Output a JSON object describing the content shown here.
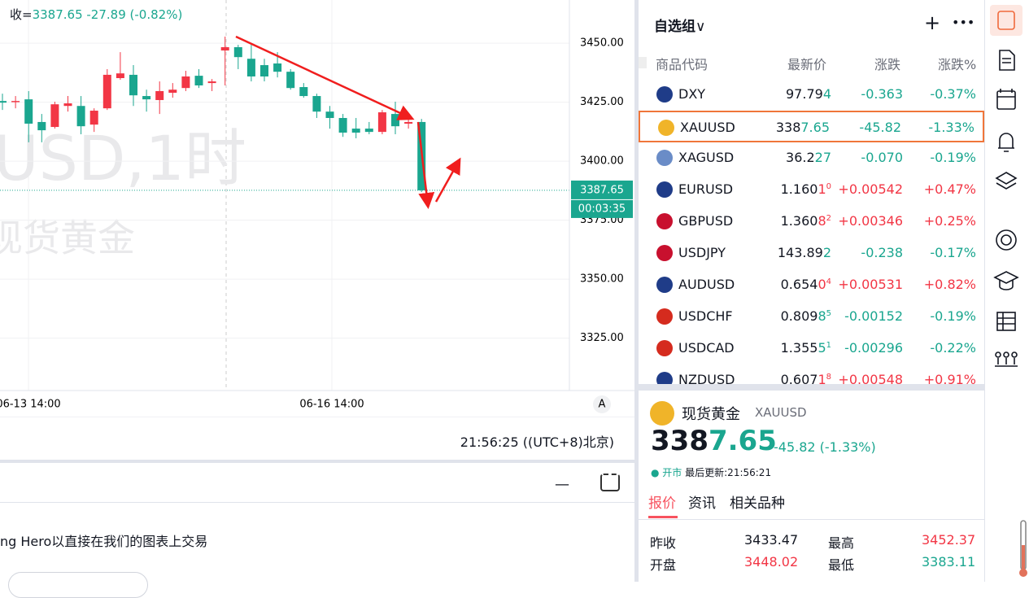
{
  "chart": {
    "type": "candlestick",
    "legend": {
      "label": "收=",
      "close": 3387.65,
      "change": -27.89,
      "change_pct": "(-0.82%)"
    },
    "watermark": {
      "symbol": "USD,1时",
      "name": "现货黄金"
    },
    "ylim": [
      3302.8,
      3468.3
    ],
    "yticks": [
      {
        "value": 3450,
        "label": "3450.00"
      },
      {
        "value": 3425,
        "label": "3425.00"
      },
      {
        "value": 3400,
        "label": "3400.00"
      },
      {
        "value": 3375,
        "label": "3375.00"
      },
      {
        "value": 3350,
        "label": "3350.00"
      },
      {
        "value": 3325,
        "label": "3325.00"
      }
    ],
    "grid": true,
    "up_color": "#f23645",
    "down_color": "#1aa68f",
    "candles": [
      {
        "open": 3425.5,
        "high": 3428.6,
        "low": 3421.7,
        "close": 3424.8
      },
      {
        "open": 3425.0,
        "high": 3427.6,
        "low": 3422.4,
        "close": 3425.5
      },
      {
        "open": 3426.2,
        "high": 3429.7,
        "low": 3408.0,
        "close": 3415.9
      },
      {
        "open": 3416.6,
        "high": 3420.0,
        "low": 3408.0,
        "close": 3413.1
      },
      {
        "open": 3414.5,
        "high": 3425.2,
        "low": 3413.8,
        "close": 3424.1
      },
      {
        "open": 3423.4,
        "high": 3427.6,
        "low": 3421.0,
        "close": 3424.5
      },
      {
        "open": 3423.4,
        "high": 3427.6,
        "low": 3411.4,
        "close": 3414.8
      },
      {
        "open": 3415.5,
        "high": 3422.4,
        "low": 3412.4,
        "close": 3421.4
      },
      {
        "open": 3422.4,
        "high": 3439.0,
        "low": 3421.7,
        "close": 3436.6
      },
      {
        "open": 3435.2,
        "high": 3446.2,
        "low": 3434.5,
        "close": 3437.2
      },
      {
        "open": 3436.6,
        "high": 3440.7,
        "low": 3423.4,
        "close": 3427.9
      },
      {
        "open": 3427.6,
        "high": 3430.3,
        "low": 3421.0,
        "close": 3426.2
      },
      {
        "open": 3425.9,
        "high": 3433.8,
        "low": 3420.0,
        "close": 3429.7
      },
      {
        "open": 3429.0,
        "high": 3433.1,
        "low": 3426.9,
        "close": 3430.3
      },
      {
        "open": 3431.0,
        "high": 3438.3,
        "low": 3429.7,
        "close": 3435.9
      },
      {
        "open": 3436.2,
        "high": 3439.0,
        "low": 3431.0,
        "close": 3432.1
      },
      {
        "open": 3433.1,
        "high": 3434.8,
        "low": 3429.7,
        "close": 3433.8
      },
      {
        "open": 3446.9,
        "high": 3452.8,
        "low": 3432.1,
        "close": 3448.3
      },
      {
        "open": 3448.3,
        "high": 3449.3,
        "low": 3439.0,
        "close": 3444.1
      },
      {
        "open": 3443.4,
        "high": 3449.3,
        "low": 3433.8,
        "close": 3435.9
      },
      {
        "open": 3440.7,
        "high": 3443.4,
        "low": 3433.8,
        "close": 3435.9
      },
      {
        "open": 3441.4,
        "high": 3446.2,
        "low": 3435.5,
        "close": 3437.9
      },
      {
        "open": 3437.9,
        "high": 3439.0,
        "low": 3430.3,
        "close": 3431.0
      },
      {
        "open": 3431.4,
        "high": 3433.1,
        "low": 3426.9,
        "close": 3427.6
      },
      {
        "open": 3427.6,
        "high": 3428.6,
        "low": 3418.3,
        "close": 3421.0
      },
      {
        "open": 3421.0,
        "high": 3423.4,
        "low": 3413.8,
        "close": 3418.3
      },
      {
        "open": 3418.3,
        "high": 3420.0,
        "low": 3410.3,
        "close": 3412.1
      },
      {
        "open": 3413.8,
        "high": 3418.3,
        "low": 3409.7,
        "close": 3412.1
      },
      {
        "open": 3413.8,
        "high": 3416.6,
        "low": 3411.4,
        "close": 3412.4
      },
      {
        "open": 3412.4,
        "high": 3421.7,
        "low": 3411.4,
        "close": 3420.7
      },
      {
        "open": 3420.0,
        "high": 3425.2,
        "low": 3411.4,
        "close": 3414.8
      },
      {
        "open": 3415.9,
        "high": 3417.9,
        "low": 3413.8,
        "close": 3416.6
      },
      {
        "open": 3416.6,
        "high": 3417.9,
        "low": 3386.9,
        "close": 3387.65
      }
    ],
    "price_tag": {
      "price": 3387.65,
      "countdown": "00:03:35"
    },
    "xlabels": [
      "06-13 14:00",
      "06-16 14:00"
    ],
    "auto_button": "A"
  },
  "time": "21:56:25 ((UTC+8)北京)",
  "panel": {
    "text": "ng Hero以直接在我们的图表上交易"
  },
  "watchlist": {
    "title": "自选组",
    "columns": [
      "商品代码",
      "最新价",
      "涨跌",
      "涨跌%"
    ],
    "rows": [
      {
        "symbol": "DXY",
        "price": {
          "base": "97.79",
          "hl": "4"
        },
        "dir": "down",
        "change": "-0.363",
        "pct": "-0.37%"
      },
      {
        "symbol": "XAUUSD",
        "price": {
          "base": "338",
          "hl": "7.65"
        },
        "dir": "down",
        "change": "-45.82",
        "pct": "-1.33%",
        "selected": true
      },
      {
        "symbol": "XAGUSD",
        "price": {
          "base": "36.2",
          "hl": "27"
        },
        "dir": "down",
        "change": "-0.070",
        "pct": "-0.19%"
      },
      {
        "symbol": "EURUSD",
        "price": {
          "base": "1.160",
          "hl": "1",
          "sup": "0"
        },
        "dir": "up",
        "change": "+0.00542",
        "pct": "+0.47%"
      },
      {
        "symbol": "GBPUSD",
        "price": {
          "base": "1.360",
          "hl": "8",
          "sup": "2"
        },
        "dir": "up",
        "change": "+0.00346",
        "pct": "+0.25%"
      },
      {
        "symbol": "USDJPY",
        "price": {
          "base": "143.89",
          "hl": "2"
        },
        "dir": "down",
        "change": "-0.238",
        "pct": "-0.17%"
      },
      {
        "symbol": "AUDUSD",
        "price": {
          "base": "0.654",
          "hl": "0",
          "sup": "4"
        },
        "dir": "up",
        "change": "+0.00531",
        "pct": "+0.82%"
      },
      {
        "symbol": "USDCHF",
        "price": {
          "base": "0.809",
          "hl": "8",
          "sup": "5"
        },
        "dir": "down",
        "change": "-0.00152",
        "pct": "-0.19%"
      },
      {
        "symbol": "USDCAD",
        "price": {
          "base": "1.355",
          "hl": "5",
          "sup": "1"
        },
        "dir": "down",
        "change": "-0.00296",
        "pct": "-0.22%"
      },
      {
        "symbol": "NZDUSD",
        "price": {
          "base": "0.607",
          "hl": "1",
          "sup": "8"
        },
        "dir": "up",
        "change": "+0.00548",
        "pct": "+0.91%"
      }
    ]
  },
  "detail": {
    "name": "现货黄金",
    "symbol": "XAUUSD",
    "price": {
      "base": "338",
      "hl": "7.65"
    },
    "dir": "down",
    "change": "-45.82 (-1.33%)",
    "status": "开市",
    "updated": "最后更新:21:56:21",
    "tabs": [
      "报价",
      "资讯",
      "相关品种"
    ],
    "stats": [
      {
        "label": "昨收",
        "value": "3433.47"
      },
      {
        "label": "最高",
        "value": "3452.37",
        "dir": "up"
      },
      {
        "label": "开盘",
        "value": "3448.02",
        "dir": "up"
      },
      {
        "label": "最低",
        "value": "3383.11",
        "dir": "down"
      }
    ]
  }
}
